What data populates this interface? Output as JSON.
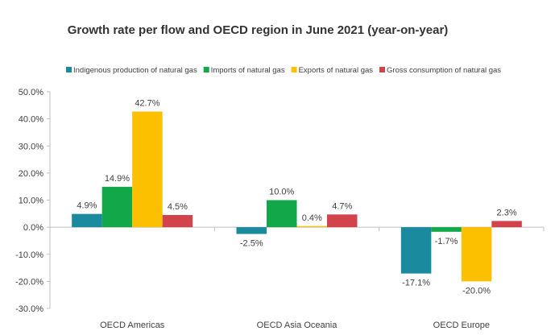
{
  "chart_data": {
    "type": "bar",
    "title": "Growth rate per flow and OECD region in June 2021 (year-on-year)",
    "categories": [
      "OECD Americas",
      "OECD Asia Oceania",
      "OECD Europe"
    ],
    "series": [
      {
        "name": "Indigenous production of natural gas",
        "color": "#1a8a9e",
        "values": [
          4.9,
          -2.5,
          -17.1
        ],
        "labels": [
          "4.9%",
          "-2.5%",
          "-17.1%"
        ]
      },
      {
        "name": "Imports of natural gas",
        "color": "#12a84a",
        "values": [
          14.9,
          10.0,
          -1.7
        ],
        "labels": [
          "14.9%",
          "10.0%",
          "-1.7%"
        ]
      },
      {
        "name": "Exports of natural gas",
        "color": "#fcc000",
        "values": [
          42.7,
          0.4,
          -20.0
        ],
        "labels": [
          "42.7%",
          "0.4%",
          "-20.0%"
        ]
      },
      {
        "name": "Gross consumption of natural gas",
        "color": "#d2434c",
        "values": [
          4.5,
          4.7,
          2.3
        ],
        "labels": [
          "4.5%",
          "4.7%",
          "2.3%"
        ]
      }
    ],
    "ylim": [
      -30,
      50
    ],
    "yticks": [
      50,
      40,
      30,
      20,
      10,
      0,
      -10,
      -20,
      -30
    ],
    "ytick_labels": [
      "50.0%",
      "40.0%",
      "30.0%",
      "20.0%",
      "10.0%",
      "0.0%",
      "-10.0%",
      "-20.0%",
      "-30.0%"
    ],
    "grid": false,
    "legend_position": "top"
  }
}
